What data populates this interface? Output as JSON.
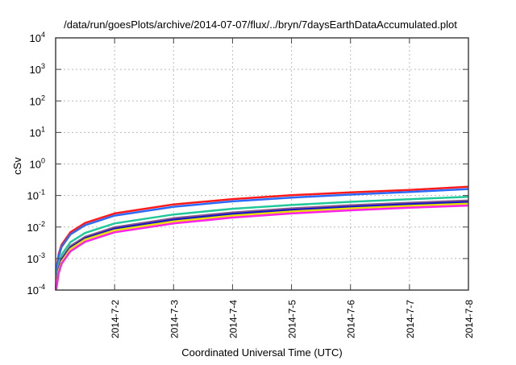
{
  "chart_data": {
    "type": "line",
    "title": "/data/run/goesPlots/archive/2014-07-07/flux/../bryn/7daysEarthDataAccumulated.plot",
    "xlabel": "Coordinated Universal Time (UTC)",
    "ylabel": "cSv",
    "yscale": "log",
    "ylim": [
      0.0001,
      10000
    ],
    "xlim_days": [
      0,
      7
    ],
    "grid": true,
    "y_ticks": [
      {
        "value": 0.0001,
        "base": "10",
        "exp": "-4"
      },
      {
        "value": 0.001,
        "base": "10",
        "exp": "-3"
      },
      {
        "value": 0.01,
        "base": "10",
        "exp": "-2"
      },
      {
        "value": 0.1,
        "base": "10",
        "exp": "-1"
      },
      {
        "value": 1,
        "base": "10",
        "exp": "0"
      },
      {
        "value": 10,
        "base": "10",
        "exp": "1"
      },
      {
        "value": 100,
        "base": "10",
        "exp": "2"
      },
      {
        "value": 1000,
        "base": "10",
        "exp": "3"
      },
      {
        "value": 10000,
        "base": "10",
        "exp": "4"
      }
    ],
    "x_ticks": [
      {
        "day": 1,
        "label": "2014-7-2"
      },
      {
        "day": 2,
        "label": "2014-7-3"
      },
      {
        "day": 3,
        "label": "2014-7-4"
      },
      {
        "day": 4,
        "label": "2014-7-5"
      },
      {
        "day": 5,
        "label": "2014-7-6"
      },
      {
        "day": 6,
        "label": "2014-7-7"
      },
      {
        "day": 7,
        "label": "2014-7-8"
      }
    ],
    "x_days": [
      0.004,
      0.02,
      0.05,
      0.1,
      0.25,
      0.5,
      1,
      2,
      3,
      4,
      5,
      6,
      7
    ],
    "series": [
      {
        "name": "red",
        "color": "#ff1a1a",
        "values": [
          0.00011,
          0.00054,
          0.00135,
          0.0027,
          0.0068,
          0.0135,
          0.027,
          0.052,
          0.077,
          0.102,
          0.126,
          0.15,
          0.19
        ]
      },
      {
        "name": "blue",
        "color": "#2a6aff",
        "values": [
          0.0001,
          0.00046,
          0.00115,
          0.0023,
          0.0058,
          0.0115,
          0.023,
          0.044,
          0.065,
          0.086,
          0.107,
          0.13,
          0.16
        ]
      },
      {
        "name": "teal",
        "color": "#20c89a",
        "values": [
          0.0001,
          0.00026,
          0.00065,
          0.0013,
          0.0033,
          0.0065,
          0.013,
          0.025,
          0.038,
          0.05,
          0.063,
          0.076,
          0.091
        ]
      },
      {
        "name": "purple",
        "color": "#8b5a8b",
        "values": [
          0.0001,
          0.0002,
          0.00049,
          0.00098,
          0.0025,
          0.0049,
          0.0098,
          0.019,
          0.029,
          0.039,
          0.049,
          0.059,
          0.069
        ]
      },
      {
        "name": "dark-blue",
        "color": "#1414c8",
        "values": [
          0.0001,
          0.00018,
          0.00044,
          0.00088,
          0.0022,
          0.0044,
          0.0088,
          0.017,
          0.026,
          0.035,
          0.044,
          0.053,
          0.062
        ]
      },
      {
        "name": "yellow",
        "color": "#e8e000",
        "values": [
          0.0001,
          0.00016,
          0.0004,
          0.00079,
          0.002,
          0.004,
          0.0079,
          0.015,
          0.023,
          0.031,
          0.039,
          0.047,
          0.055
        ]
      },
      {
        "name": "magenta",
        "color": "#ff22e6",
        "values": [
          0.0001,
          0.00014,
          0.00034,
          0.00068,
          0.0017,
          0.0034,
          0.0068,
          0.013,
          0.02,
          0.027,
          0.034,
          0.041,
          0.048
        ]
      }
    ]
  }
}
